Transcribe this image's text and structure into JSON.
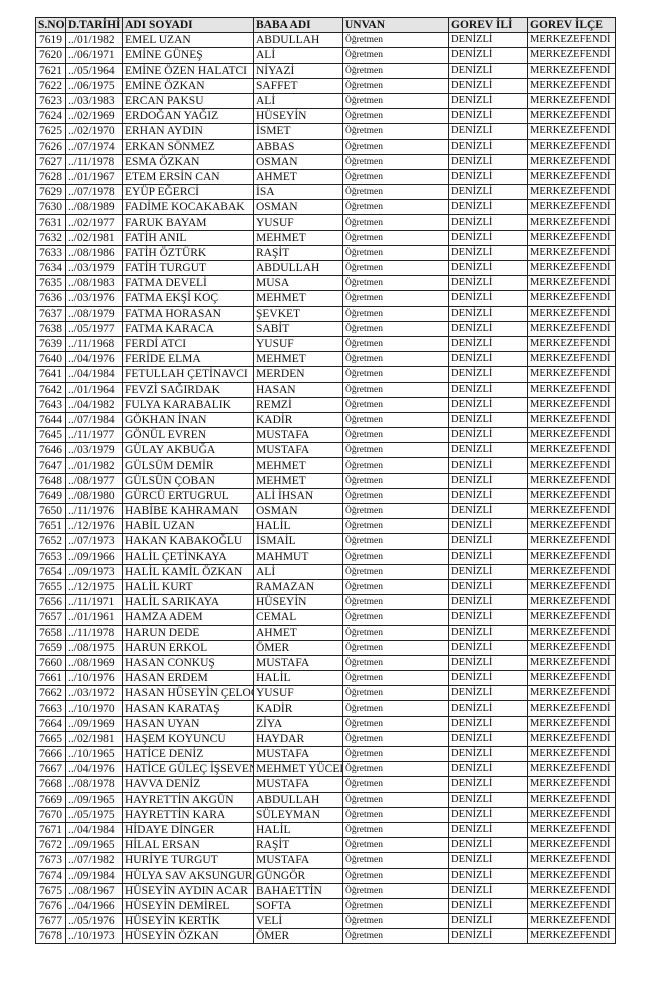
{
  "table": {
    "headers": [
      "S.NO",
      "D.TARİHİ",
      "ADI SOYADI",
      "BABA ADI",
      "UNVAN",
      "GOREV İLİ",
      "GOREV İLÇE"
    ],
    "rows": [
      [
        "7619",
        "../01/1982",
        "EMEL UZAN",
        "ABDULLAH",
        "Öğretmen",
        "DENİZLİ",
        "MERKEZEFENDİ"
      ],
      [
        "7620",
        "../06/1971",
        "EMİNE GÜNEŞ",
        "ALİ",
        "Öğretmen",
        "DENİZLİ",
        "MERKEZEFENDİ"
      ],
      [
        "7621",
        "../05/1964",
        "EMİNE ÖZEN HALATCI",
        "NİYAZİ",
        "Öğretmen",
        "DENİZLİ",
        "MERKEZEFENDİ"
      ],
      [
        "7622",
        "../06/1975",
        "EMİNE ÖZKAN",
        "SAFFET",
        "Öğretmen",
        "DENİZLİ",
        "MERKEZEFENDİ"
      ],
      [
        "7623",
        "../03/1983",
        "ERCAN PAKSU",
        "ALİ",
        "Öğretmen",
        "DENİZLİ",
        "MERKEZEFENDİ"
      ],
      [
        "7624",
        "../02/1969",
        "ERDOĞAN YAĞIZ",
        "HÜSEYİN",
        "Öğretmen",
        "DENİZLİ",
        "MERKEZEFENDİ"
      ],
      [
        "7625",
        "../02/1970",
        "ERHAN AYDIN",
        "İSMET",
        "Öğretmen",
        "DENİZLİ",
        "MERKEZEFENDİ"
      ],
      [
        "7626",
        "../07/1974",
        "ERKAN SÖNMEZ",
        "ABBAS",
        "Öğretmen",
        "DENİZLİ",
        "MERKEZEFENDİ"
      ],
      [
        "7627",
        "../11/1978",
        "ESMA ÖZKAN",
        "OSMAN",
        "Öğretmen",
        "DENİZLİ",
        "MERKEZEFENDİ"
      ],
      [
        "7628",
        "../01/1967",
        "ETEM ERSİN CAN",
        "AHMET",
        "Öğretmen",
        "DENİZLİ",
        "MERKEZEFENDİ"
      ],
      [
        "7629",
        "../07/1978",
        "EYÜP EĞERCİ",
        "İSA",
        "Öğretmen",
        "DENİZLİ",
        "MERKEZEFENDİ"
      ],
      [
        "7630",
        "../08/1989",
        "FADİME KOCAKABAK",
        "OSMAN",
        "Öğretmen",
        "DENİZLİ",
        "MERKEZEFENDİ"
      ],
      [
        "7631",
        "../02/1977",
        "FARUK BAYAM",
        "YUSUF",
        "Öğretmen",
        "DENİZLİ",
        "MERKEZEFENDİ"
      ],
      [
        "7632",
        "../02/1981",
        "FATİH ANIL",
        "MEHMET",
        "Öğretmen",
        "DENİZLİ",
        "MERKEZEFENDİ"
      ],
      [
        "7633",
        "../08/1986",
        "FATİH ÖZTÜRK",
        "RAŞİT",
        "Öğretmen",
        "DENİZLİ",
        "MERKEZEFENDİ"
      ],
      [
        "7634",
        "../03/1979",
        "FATİH TURGUT",
        "ABDULLAH",
        "Öğretmen",
        "DENİZLİ",
        "MERKEZEFENDİ"
      ],
      [
        "7635",
        "../08/1983",
        "FATMA DEVELİ",
        "MUSA",
        "Öğretmen",
        "DENİZLİ",
        "MERKEZEFENDİ"
      ],
      [
        "7636",
        "../03/1976",
        "FATMA EKŞİ KOÇ",
        "MEHMET",
        "Öğretmen",
        "DENİZLİ",
        "MERKEZEFENDİ"
      ],
      [
        "7637",
        "../08/1979",
        "FATMA HORASAN",
        "ŞEVKET",
        "Öğretmen",
        "DENİZLİ",
        "MERKEZEFENDİ"
      ],
      [
        "7638",
        "../05/1977",
        "FATMA KARACA",
        "SABİT",
        "Öğretmen",
        "DENİZLİ",
        "MERKEZEFENDİ"
      ],
      [
        "7639",
        "../11/1968",
        "FERDİ ATCI",
        "YUSUF",
        "Öğretmen",
        "DENİZLİ",
        "MERKEZEFENDİ"
      ],
      [
        "7640",
        "../04/1976",
        "FERİDE ELMA",
        "MEHMET",
        "Öğretmen",
        "DENİZLİ",
        "MERKEZEFENDİ"
      ],
      [
        "7641",
        "../04/1984",
        "FETULLAH ÇETİNAVCI",
        "MERDEN",
        "Öğretmen",
        "DENİZLİ",
        "MERKEZEFENDİ"
      ],
      [
        "7642",
        "../01/1964",
        "FEVZİ SAĞIRDAK",
        "HASAN",
        "Öğretmen",
        "DENİZLİ",
        "MERKEZEFENDİ"
      ],
      [
        "7643",
        "../04/1982",
        "FULYA KARABALIK",
        "REMZİ",
        "Öğretmen",
        "DENİZLİ",
        "MERKEZEFENDİ"
      ],
      [
        "7644",
        "../07/1984",
        "GÖKHAN İNAN",
        "KADİR",
        "Öğretmen",
        "DENİZLİ",
        "MERKEZEFENDİ"
      ],
      [
        "7645",
        "../11/1977",
        "GÖNÜL EVREN",
        "MUSTAFA",
        "Öğretmen",
        "DENİZLİ",
        "MERKEZEFENDİ"
      ],
      [
        "7646",
        "../03/1979",
        "GÜLAY AKBUĞA",
        "MUSTAFA",
        "Öğretmen",
        "DENİZLİ",
        "MERKEZEFENDİ"
      ],
      [
        "7647",
        "../01/1982",
        "GÜLSÜM DEMİR",
        "MEHMET",
        "Öğretmen",
        "DENİZLİ",
        "MERKEZEFENDİ"
      ],
      [
        "7648",
        "../08/1977",
        "GÜLSÜN ÇOBAN",
        "MEHMET",
        "Öğretmen",
        "DENİZLİ",
        "MERKEZEFENDİ"
      ],
      [
        "7649",
        "../08/1980",
        "GÜRCÜ ERTUGRUL",
        "ALİ İHSAN",
        "Öğretmen",
        "DENİZLİ",
        "MERKEZEFENDİ"
      ],
      [
        "7650",
        "../11/1976",
        "HABİBE KAHRAMAN",
        "OSMAN",
        "Öğretmen",
        "DENİZLİ",
        "MERKEZEFENDİ"
      ],
      [
        "7651",
        "../12/1976",
        "HABİL UZAN",
        "HALİL",
        "Öğretmen",
        "DENİZLİ",
        "MERKEZEFENDİ"
      ],
      [
        "7652",
        "../07/1973",
        "HAKAN KABAKOĞLU",
        "İSMAİL",
        "Öğretmen",
        "DENİZLİ",
        "MERKEZEFENDİ"
      ],
      [
        "7653",
        "../09/1966",
        "HALİL ÇETİNKAYA",
        "MAHMUT",
        "Öğretmen",
        "DENİZLİ",
        "MERKEZEFENDİ"
      ],
      [
        "7654",
        "../09/1973",
        "HALİL KAMİL ÖZKAN",
        "ALİ",
        "Öğretmen",
        "DENİZLİ",
        "MERKEZEFENDİ"
      ],
      [
        "7655",
        "../12/1975",
        "HALİL KURT",
        "RAMAZAN",
        "Öğretmen",
        "DENİZLİ",
        "MERKEZEFENDİ"
      ],
      [
        "7656",
        "../11/1971",
        "HALİL SARIKAYA",
        "HÜSEYİN",
        "Öğretmen",
        "DENİZLİ",
        "MERKEZEFENDİ"
      ],
      [
        "7657",
        "../01/1961",
        "HAMZA ADEM",
        "CEMAL",
        "Öğretmen",
        "DENİZLİ",
        "MERKEZEFENDİ"
      ],
      [
        "7658",
        "../11/1978",
        "HARUN DEDE",
        "AHMET",
        "Öğretmen",
        "DENİZLİ",
        "MERKEZEFENDİ"
      ],
      [
        "7659",
        "../08/1975",
        "HARUN ERKOL",
        "ÖMER",
        "Öğretmen",
        "DENİZLİ",
        "MERKEZEFENDİ"
      ],
      [
        "7660",
        "../08/1969",
        "HASAN CONKUŞ",
        "MUSTAFA",
        "Öğretmen",
        "DENİZLİ",
        "MERKEZEFENDİ"
      ],
      [
        "7661",
        "../10/1976",
        "HASAN ERDEM",
        "HALİL",
        "Öğretmen",
        "DENİZLİ",
        "MERKEZEFENDİ"
      ],
      [
        "7662",
        "../03/1972",
        "HASAN HÜSEYİN ÇELOĞLU",
        "YUSUF",
        "Öğretmen",
        "DENİZLİ",
        "MERKEZEFENDİ"
      ],
      [
        "7663",
        "../10/1970",
        "HASAN KARATAŞ",
        "KADİR",
        "Öğretmen",
        "DENİZLİ",
        "MERKEZEFENDİ"
      ],
      [
        "7664",
        "../09/1969",
        "HASAN UYAN",
        "ZİYA",
        "Öğretmen",
        "DENİZLİ",
        "MERKEZEFENDİ"
      ],
      [
        "7665",
        "../02/1981",
        "HAŞEM KOYUNCU",
        "HAYDAR",
        "Öğretmen",
        "DENİZLİ",
        "MERKEZEFENDİ"
      ],
      [
        "7666",
        "../10/1965",
        "HATİCE DENİZ",
        "MUSTAFA",
        "Öğretmen",
        "DENİZLİ",
        "MERKEZEFENDİ"
      ],
      [
        "7667",
        "../04/1976",
        "HATİCE GÜLEÇ İŞSEVEN",
        "MEHMET YÜCEL",
        "Öğretmen",
        "DENİZLİ",
        "MERKEZEFENDİ"
      ],
      [
        "7668",
        "../08/1978",
        "HAVVA DENİZ",
        "MUSTAFA",
        "Öğretmen",
        "DENİZLİ",
        "MERKEZEFENDİ"
      ],
      [
        "7669",
        "../09/1965",
        "HAYRETTİN AKGÜN",
        "ABDULLAH",
        "Öğretmen",
        "DENİZLİ",
        "MERKEZEFENDİ"
      ],
      [
        "7670",
        "../05/1975",
        "HAYRETTİN KARA",
        "SÜLEYMAN",
        "Öğretmen",
        "DENİZLİ",
        "MERKEZEFENDİ"
      ],
      [
        "7671",
        "../04/1984",
        "HİDAYE DİNGER",
        "HALİL",
        "Öğretmen",
        "DENİZLİ",
        "MERKEZEFENDİ"
      ],
      [
        "7672",
        "../09/1965",
        "HİLAL ERSAN",
        "RAŞİT",
        "Öğretmen",
        "DENİZLİ",
        "MERKEZEFENDİ"
      ],
      [
        "7673",
        "../07/1982",
        "HURİYE TURGUT",
        "MUSTAFA",
        "Öğretmen",
        "DENİZLİ",
        "MERKEZEFENDİ"
      ],
      [
        "7674",
        "../09/1984",
        "HÜLYA SAV AKSUNGUR",
        "GÜNGÖR",
        "Öğretmen",
        "DENİZLİ",
        "MERKEZEFENDİ"
      ],
      [
        "7675",
        "../08/1967",
        "HÜSEYİN AYDIN ACAR",
        "BAHAETTİN",
        "Öğretmen",
        "DENİZLİ",
        "MERKEZEFENDİ"
      ],
      [
        "7676",
        "../04/1966",
        "HÜSEYİN DEMİREL",
        "SOFTA",
        "Öğretmen",
        "DENİZLİ",
        "MERKEZEFENDİ"
      ],
      [
        "7677",
        "../05/1976",
        "HÜSEYİN KERTİK",
        "VELİ",
        "Öğretmen",
        "DENİZLİ",
        "MERKEZEFENDİ"
      ],
      [
        "7678",
        "../10/1973",
        "HÜSEYİN ÖZKAN",
        "ÖMER",
        "Öğretmen",
        "DENİZLİ",
        "MERKEZEFENDİ"
      ]
    ]
  }
}
